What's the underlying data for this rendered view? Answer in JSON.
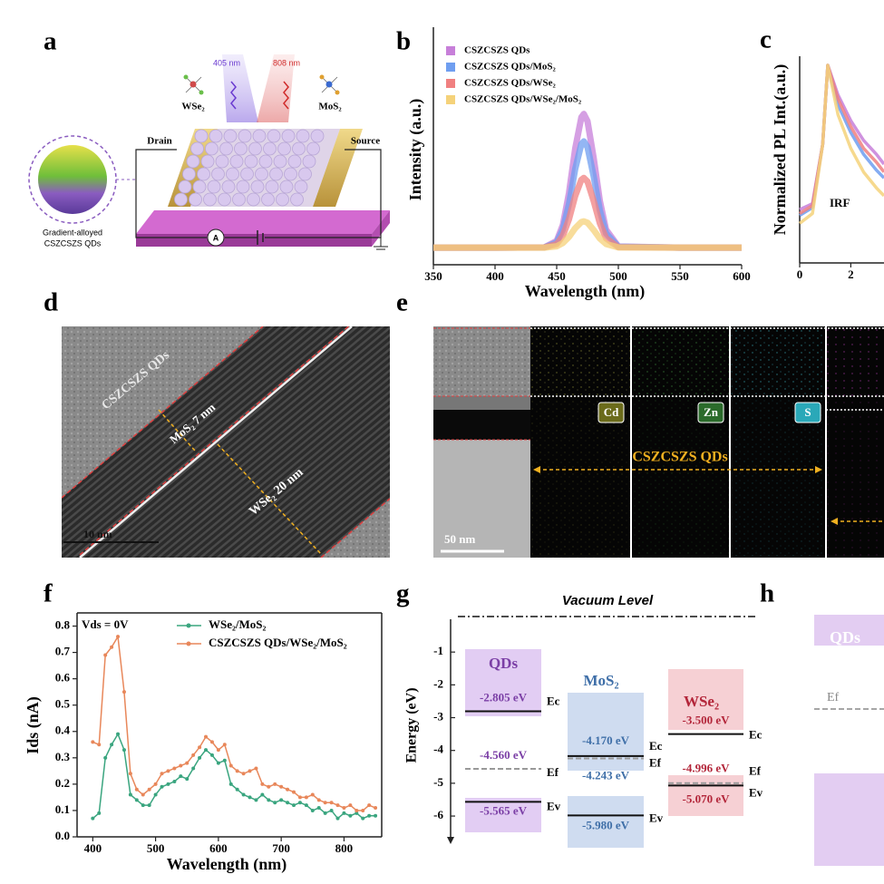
{
  "figure_a": {
    "label": "a",
    "laser_1": "405 nm",
    "laser_2": "808 nm",
    "material_1": "WSe₂",
    "material_2": "MoS₂",
    "drain": "Drain",
    "source": "Source",
    "qd_caption": [
      "Gradient-alloyed",
      "CSZCSZS QDs"
    ],
    "ammeter": "A"
  },
  "figure_d": {
    "label": "d",
    "qd_text": "CSZCSZS QDs",
    "mos2_text": "MoS₂ 7 nm",
    "wse2_text": "WSe₂ 20 nm",
    "scale_bar": "10 nm"
  },
  "figure_e": {
    "label": "e",
    "elements": [
      "Cd",
      "Zn",
      "S"
    ],
    "qd_text": "CSZCSZS QDs",
    "scale_bar": "50 nm"
  },
  "figure_h": {
    "label": "h",
    "qds": "QDs",
    "ef": "Ef"
  },
  "chart_data": [
    {
      "label": "b",
      "type": "line",
      "xlabel": "Wavelength (nm)",
      "ylabel": "Intensity (a.u.)",
      "x": [
        350,
        400,
        440,
        450,
        455,
        460,
        465,
        470,
        472,
        475,
        480,
        485,
        490,
        500,
        550,
        600
      ],
      "xlim": [
        350,
        600
      ],
      "xticks": [
        350,
        400,
        450,
        500,
        550,
        600
      ],
      "ylim": [
        0,
        1
      ],
      "series": [
        {
          "name": "CSZCSZS QDs",
          "color": "#c77fd9",
          "values": [
            0.075,
            0.075,
            0.076,
            0.104,
            0.174,
            0.315,
            0.508,
            0.645,
            0.66,
            0.628,
            0.467,
            0.28,
            0.154,
            0.08,
            0.075,
            0.075
          ]
        },
        {
          "name": "CSZCSZS QDs/MoS₂",
          "color": "#6f9ef0",
          "values": [
            0.075,
            0.075,
            0.076,
            0.098,
            0.154,
            0.266,
            0.419,
            0.528,
            0.54,
            0.515,
            0.387,
            0.238,
            0.138,
            0.079,
            0.075,
            0.075
          ]
        },
        {
          "name": "CSZCSZS QDs/WSe₂",
          "color": "#f08080",
          "values": [
            0.075,
            0.075,
            0.076,
            0.09,
            0.127,
            0.2,
            0.301,
            0.372,
            0.38,
            0.364,
            0.279,
            0.182,
            0.116,
            0.077,
            0.075,
            0.075
          ]
        },
        {
          "name": "CSZCSZS QDs/WSe₂/MoS₂",
          "color": "#f5d27a",
          "values": [
            0.075,
            0.075,
            0.075,
            0.081,
            0.095,
            0.122,
            0.16,
            0.187,
            0.19,
            0.184,
            0.152,
            0.115,
            0.091,
            0.076,
            0.075,
            0.075
          ]
        }
      ]
    },
    {
      "label": "c",
      "type": "line",
      "ylabel": "Normalized PL Int.(a.u.)",
      "annotation": "IRF",
      "x": [
        0,
        0.5,
        0.9,
        1.1,
        1.5,
        2,
        2.5,
        3,
        3.3
      ],
      "xlim": [
        0,
        3.3
      ],
      "xticks": [
        0,
        2
      ],
      "ylim": [
        0,
        1
      ],
      "series": [
        {
          "color": "#c77fd9",
          "values": [
            0.27,
            0.3,
            0.6,
            1,
            0.85,
            0.72,
            0.62,
            0.55,
            0.5
          ]
        },
        {
          "color": "#6f9ef0",
          "values": [
            0.24,
            0.28,
            0.6,
            1,
            0.8,
            0.66,
            0.55,
            0.47,
            0.43
          ]
        },
        {
          "color": "#f08080",
          "values": [
            0.25,
            0.29,
            0.6,
            1,
            0.83,
            0.69,
            0.58,
            0.51,
            0.46
          ]
        },
        {
          "color": "#f5d27a",
          "values": [
            0.2,
            0.25,
            0.6,
            1,
            0.75,
            0.58,
            0.46,
            0.38,
            0.34
          ]
        }
      ]
    },
    {
      "label": "f",
      "type": "line",
      "marker": true,
      "xlabel": "Wavelength (nm)",
      "ylabel": "Ids (nA)",
      "annotation": "Vds = 0V",
      "x": [
        400,
        410,
        420,
        430,
        440,
        450,
        460,
        470,
        480,
        490,
        500,
        510,
        520,
        530,
        540,
        550,
        560,
        570,
        580,
        590,
        600,
        610,
        620,
        630,
        640,
        650,
        660,
        670,
        680,
        690,
        700,
        710,
        720,
        730,
        740,
        750,
        760,
        770,
        780,
        790,
        800,
        810,
        820,
        830,
        840,
        850
      ],
      "xlim": [
        375,
        860
      ],
      "xticks": [
        400,
        500,
        600,
        700,
        800
      ],
      "ylim": [
        0,
        0.85
      ],
      "yticks": [
        {
          "value": 0,
          "label": "0.0"
        },
        0.1,
        0.2,
        0.3,
        0.4,
        0.5,
        0.6,
        0.7,
        0.8
      ],
      "series": [
        {
          "name": "WSe₂/MoS₂",
          "color": "#3aa57f",
          "values": [
            0.07,
            0.09,
            0.3,
            0.35,
            0.39,
            0.33,
            0.16,
            0.14,
            0.12,
            0.12,
            0.16,
            0.19,
            0.2,
            0.21,
            0.23,
            0.22,
            0.26,
            0.3,
            0.33,
            0.31,
            0.28,
            0.29,
            0.2,
            0.18,
            0.16,
            0.15,
            0.14,
            0.16,
            0.14,
            0.13,
            0.14,
            0.13,
            0.12,
            0.13,
            0.12,
            0.1,
            0.11,
            0.09,
            0.1,
            0.07,
            0.09,
            0.08,
            0.09,
            0.07,
            0.08,
            0.08
          ]
        },
        {
          "name": "CSZCSZS QDs/WSe₂/MoS₂",
          "color": "#e8875a",
          "values": [
            0.36,
            0.35,
            0.69,
            0.72,
            0.76,
            0.55,
            0.24,
            0.18,
            0.16,
            0.18,
            0.2,
            0.24,
            0.25,
            0.26,
            0.27,
            0.28,
            0.31,
            0.34,
            0.38,
            0.36,
            0.33,
            0.35,
            0.27,
            0.25,
            0.24,
            0.25,
            0.26,
            0.2,
            0.19,
            0.2,
            0.19,
            0.18,
            0.17,
            0.15,
            0.15,
            0.16,
            0.14,
            0.13,
            0.13,
            0.12,
            0.11,
            0.12,
            0.1,
            0.1,
            0.12,
            0.11
          ]
        }
      ]
    },
    {
      "label": "g",
      "type": "energy",
      "title": "Vacuum Level",
      "ylabel": "Energy (eV)",
      "ylim": [
        -6.8,
        0
      ],
      "yticks": [
        -1,
        -2,
        -3,
        -4,
        -5,
        -6
      ],
      "level_names": [
        "Ec",
        "Ef",
        "Ev"
      ],
      "series": [
        {
          "name": "QDs",
          "color": "#7b3fa6",
          "values": [
            -2.805,
            -4.56,
            -5.565
          ],
          "value_labels": [
            "-2.805 eV",
            "-4.560 eV",
            "-5.565 eV"
          ]
        },
        {
          "name": "MoS₂",
          "color": "#3f6fa8",
          "values": [
            -4.17,
            -4.243,
            -5.98
          ],
          "value_labels": [
            "-4.170 eV",
            "-4.243 eV",
            "-5.980 eV"
          ]
        },
        {
          "name": "WSe₂",
          "color": "#b3263a",
          "values": [
            -3.5,
            -4.996,
            -5.07
          ],
          "value_labels": [
            "-3.500 eV",
            "-4.996 eV",
            "-5.070 eV"
          ]
        }
      ]
    }
  ]
}
